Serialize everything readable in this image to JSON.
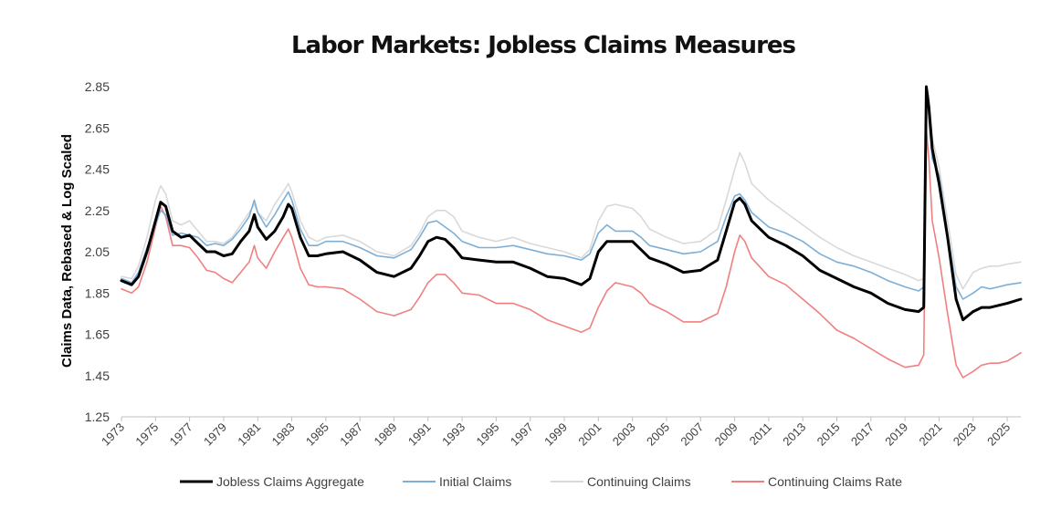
{
  "chart_data": {
    "type": "line",
    "title": "Labor Markets: Jobless Claims Measures",
    "xlabel": "",
    "ylabel": "Claims Data, Rebased & Log Scaled",
    "xlim": [
      1973,
      2025.8
    ],
    "ylim": [
      1.25,
      2.85
    ],
    "yticks": [
      "2.85",
      "2.65",
      "2.45",
      "2.25",
      "2.05",
      "1.85",
      "1.65",
      "1.45",
      "1.25"
    ],
    "xticks": [
      "1973",
      "1975",
      "1977",
      "1979",
      "1981",
      "1983",
      "1985",
      "1987",
      "1989",
      "1991",
      "1993",
      "1995",
      "1997",
      "1999",
      "2001",
      "2003",
      "2005",
      "2007",
      "2009",
      "2011",
      "2013",
      "2015",
      "2017",
      "2019",
      "2021",
      "2023",
      "2025"
    ],
    "grid": false,
    "legend": "bottom",
    "series": [
      {
        "name": "Jobless Claims Aggregate",
        "color": "#000000",
        "x": [
          1973.0,
          1973.6,
          1974.0,
          1974.5,
          1975.0,
          1975.3,
          1975.6,
          1976.0,
          1976.5,
          1977.0,
          1977.5,
          1978.0,
          1978.5,
          1979.0,
          1979.5,
          1980.0,
          1980.5,
          1980.8,
          1981.0,
          1981.5,
          1982.0,
          1982.5,
          1982.8,
          1983.0,
          1983.5,
          1984.0,
          1984.5,
          1985.0,
          1986.0,
          1987.0,
          1988.0,
          1989.0,
          1990.0,
          1990.5,
          1991.0,
          1991.5,
          1992.0,
          1992.5,
          1993.0,
          1994.0,
          1995.0,
          1996.0,
          1997.0,
          1998.0,
          1999.0,
          2000.0,
          2000.5,
          2001.0,
          2001.5,
          2002.0,
          2003.0,
          2003.5,
          2004.0,
          2005.0,
          2006.0,
          2007.0,
          2008.0,
          2008.5,
          2009.0,
          2009.3,
          2009.6,
          2010.0,
          2011.0,
          2012.0,
          2013.0,
          2014.0,
          2015.0,
          2016.0,
          2017.0,
          2018.0,
          2019.0,
          2019.8,
          2020.1,
          2020.25,
          2020.4,
          2020.6,
          2021.0,
          2021.5,
          2022.0,
          2022.4,
          2023.0,
          2023.5,
          2024.0,
          2024.5,
          2025.0,
          2025.8
        ],
        "values": [
          1.91,
          1.89,
          1.93,
          2.05,
          2.2,
          2.29,
          2.27,
          2.15,
          2.12,
          2.13,
          2.09,
          2.05,
          2.05,
          2.03,
          2.04,
          2.1,
          2.15,
          2.23,
          2.17,
          2.11,
          2.15,
          2.22,
          2.28,
          2.26,
          2.12,
          2.03,
          2.03,
          2.04,
          2.05,
          2.01,
          1.95,
          1.93,
          1.97,
          2.03,
          2.1,
          2.12,
          2.11,
          2.07,
          2.02,
          2.01,
          2.0,
          2.0,
          1.97,
          1.93,
          1.92,
          1.89,
          1.92,
          2.05,
          2.1,
          2.1,
          2.1,
          2.06,
          2.02,
          1.99,
          1.95,
          1.96,
          2.01,
          2.15,
          2.29,
          2.31,
          2.28,
          2.2,
          2.12,
          2.08,
          2.03,
          1.96,
          1.92,
          1.88,
          1.85,
          1.8,
          1.77,
          1.76,
          1.78,
          2.85,
          2.75,
          2.55,
          2.38,
          2.12,
          1.82,
          1.72,
          1.76,
          1.78,
          1.78,
          1.79,
          1.8,
          1.82
        ]
      },
      {
        "name": "Initial Claims",
        "color": "#7bafd8",
        "x": [
          1973.0,
          1973.6,
          1974.0,
          1974.5,
          1975.0,
          1975.3,
          1975.6,
          1976.0,
          1976.5,
          1977.0,
          1977.5,
          1978.0,
          1978.5,
          1979.0,
          1979.5,
          1980.0,
          1980.5,
          1980.8,
          1981.0,
          1981.5,
          1982.0,
          1982.5,
          1982.8,
          1983.0,
          1983.5,
          1984.0,
          1984.5,
          1985.0,
          1986.0,
          1987.0,
          1988.0,
          1989.0,
          1990.0,
          1990.5,
          1991.0,
          1991.5,
          1992.0,
          1992.5,
          1993.0,
          1994.0,
          1995.0,
          1996.0,
          1997.0,
          1998.0,
          1999.0,
          2000.0,
          2000.5,
          2001.0,
          2001.5,
          2002.0,
          2003.0,
          2003.5,
          2004.0,
          2005.0,
          2006.0,
          2007.0,
          2008.0,
          2008.5,
          2009.0,
          2009.3,
          2009.6,
          2010.0,
          2011.0,
          2012.0,
          2013.0,
          2014.0,
          2015.0,
          2016.0,
          2017.0,
          2018.0,
          2019.0,
          2019.8,
          2020.1,
          2020.25,
          2020.4,
          2020.6,
          2021.0,
          2021.5,
          2022.0,
          2022.4,
          2023.0,
          2023.5,
          2024.0,
          2024.5,
          2025.0,
          2025.8
        ],
        "values": [
          1.92,
          1.9,
          1.95,
          2.07,
          2.18,
          2.25,
          2.23,
          2.13,
          2.14,
          2.13,
          2.12,
          2.08,
          2.09,
          2.08,
          2.11,
          2.16,
          2.22,
          2.3,
          2.24,
          2.17,
          2.23,
          2.3,
          2.34,
          2.3,
          2.16,
          2.08,
          2.08,
          2.1,
          2.1,
          2.07,
          2.03,
          2.02,
          2.06,
          2.12,
          2.19,
          2.2,
          2.17,
          2.14,
          2.1,
          2.07,
          2.07,
          2.08,
          2.06,
          2.04,
          2.03,
          2.01,
          2.04,
          2.14,
          2.18,
          2.15,
          2.15,
          2.12,
          2.08,
          2.06,
          2.04,
          2.05,
          2.1,
          2.22,
          2.32,
          2.33,
          2.3,
          2.24,
          2.17,
          2.14,
          2.1,
          2.04,
          2.0,
          1.98,
          1.95,
          1.91,
          1.88,
          1.86,
          1.88,
          2.85,
          2.7,
          2.5,
          2.42,
          2.14,
          1.88,
          1.82,
          1.85,
          1.88,
          1.87,
          1.88,
          1.89,
          1.9
        ]
      },
      {
        "name": "Continuing Claims",
        "color": "#d9d9d9",
        "x": [
          1973.0,
          1973.6,
          1974.0,
          1974.5,
          1975.0,
          1975.3,
          1975.6,
          1976.0,
          1976.5,
          1977.0,
          1977.5,
          1978.0,
          1978.5,
          1979.0,
          1979.5,
          1980.0,
          1980.5,
          1980.8,
          1981.0,
          1981.5,
          1982.0,
          1982.5,
          1982.8,
          1983.0,
          1983.5,
          1984.0,
          1984.5,
          1985.0,
          1986.0,
          1987.0,
          1988.0,
          1989.0,
          1990.0,
          1990.5,
          1991.0,
          1991.5,
          1992.0,
          1992.5,
          1993.0,
          1994.0,
          1995.0,
          1996.0,
          1997.0,
          1998.0,
          1999.0,
          2000.0,
          2000.5,
          2001.0,
          2001.5,
          2002.0,
          2003.0,
          2003.5,
          2004.0,
          2005.0,
          2006.0,
          2007.0,
          2008.0,
          2008.5,
          2009.0,
          2009.3,
          2009.6,
          2010.0,
          2011.0,
          2012.0,
          2013.0,
          2014.0,
          2015.0,
          2016.0,
          2017.0,
          2018.0,
          2019.0,
          2019.8,
          2020.1,
          2020.25,
          2020.4,
          2020.6,
          2021.0,
          2021.5,
          2022.0,
          2022.4,
          2023.0,
          2023.5,
          2024.0,
          2024.5,
          2025.0,
          2025.8
        ],
        "values": [
          1.93,
          1.92,
          1.98,
          2.12,
          2.3,
          2.37,
          2.33,
          2.2,
          2.18,
          2.2,
          2.15,
          2.1,
          2.1,
          2.09,
          2.12,
          2.18,
          2.24,
          2.28,
          2.24,
          2.2,
          2.28,
          2.34,
          2.38,
          2.34,
          2.2,
          2.12,
          2.1,
          2.12,
          2.13,
          2.1,
          2.05,
          2.03,
          2.08,
          2.14,
          2.22,
          2.25,
          2.25,
          2.22,
          2.15,
          2.12,
          2.1,
          2.12,
          2.09,
          2.07,
          2.05,
          2.02,
          2.06,
          2.2,
          2.27,
          2.28,
          2.26,
          2.22,
          2.16,
          2.12,
          2.09,
          2.1,
          2.16,
          2.3,
          2.45,
          2.53,
          2.48,
          2.38,
          2.3,
          2.24,
          2.18,
          2.12,
          2.07,
          2.03,
          2.0,
          1.97,
          1.94,
          1.91,
          1.92,
          2.85,
          2.8,
          2.6,
          2.46,
          2.2,
          1.94,
          1.87,
          1.95,
          1.97,
          1.98,
          1.98,
          1.99,
          2.0
        ]
      },
      {
        "name": "Continuing Claims Rate",
        "color": "#f08080",
        "x": [
          1973.0,
          1973.6,
          1974.0,
          1974.5,
          1975.0,
          1975.3,
          1975.6,
          1976.0,
          1976.5,
          1977.0,
          1977.5,
          1978.0,
          1978.5,
          1979.0,
          1979.5,
          1980.0,
          1980.5,
          1980.8,
          1981.0,
          1981.5,
          1982.0,
          1982.5,
          1982.8,
          1983.0,
          1983.5,
          1984.0,
          1984.5,
          1985.0,
          1986.0,
          1987.0,
          1988.0,
          1989.0,
          1990.0,
          1990.5,
          1991.0,
          1991.5,
          1992.0,
          1992.5,
          1993.0,
          1994.0,
          1995.0,
          1996.0,
          1997.0,
          1998.0,
          1999.0,
          2000.0,
          2000.5,
          2001.0,
          2001.5,
          2002.0,
          2003.0,
          2003.5,
          2004.0,
          2005.0,
          2006.0,
          2007.0,
          2008.0,
          2008.5,
          2009.0,
          2009.3,
          2009.6,
          2010.0,
          2011.0,
          2012.0,
          2013.0,
          2014.0,
          2015.0,
          2016.0,
          2017.0,
          2018.0,
          2019.0,
          2019.8,
          2020.1,
          2020.25,
          2020.4,
          2020.6,
          2021.0,
          2021.5,
          2022.0,
          2022.4,
          2023.0,
          2023.5,
          2024.0,
          2024.5,
          2025.0,
          2025.8
        ],
        "values": [
          1.87,
          1.85,
          1.88,
          2.0,
          2.17,
          2.27,
          2.22,
          2.08,
          2.08,
          2.07,
          2.02,
          1.96,
          1.95,
          1.92,
          1.9,
          1.95,
          2.0,
          2.08,
          2.02,
          1.97,
          2.05,
          2.12,
          2.16,
          2.12,
          1.97,
          1.89,
          1.88,
          1.88,
          1.87,
          1.82,
          1.76,
          1.74,
          1.77,
          1.83,
          1.9,
          1.94,
          1.94,
          1.9,
          1.85,
          1.84,
          1.8,
          1.8,
          1.77,
          1.72,
          1.69,
          1.66,
          1.68,
          1.78,
          1.86,
          1.9,
          1.88,
          1.85,
          1.8,
          1.76,
          1.71,
          1.71,
          1.75,
          1.88,
          2.05,
          2.13,
          2.1,
          2.02,
          1.93,
          1.89,
          1.82,
          1.75,
          1.67,
          1.63,
          1.58,
          1.53,
          1.49,
          1.5,
          1.55,
          2.64,
          2.5,
          2.2,
          2.02,
          1.75,
          1.5,
          1.44,
          1.47,
          1.5,
          1.51,
          1.51,
          1.52,
          1.56
        ]
      }
    ]
  }
}
